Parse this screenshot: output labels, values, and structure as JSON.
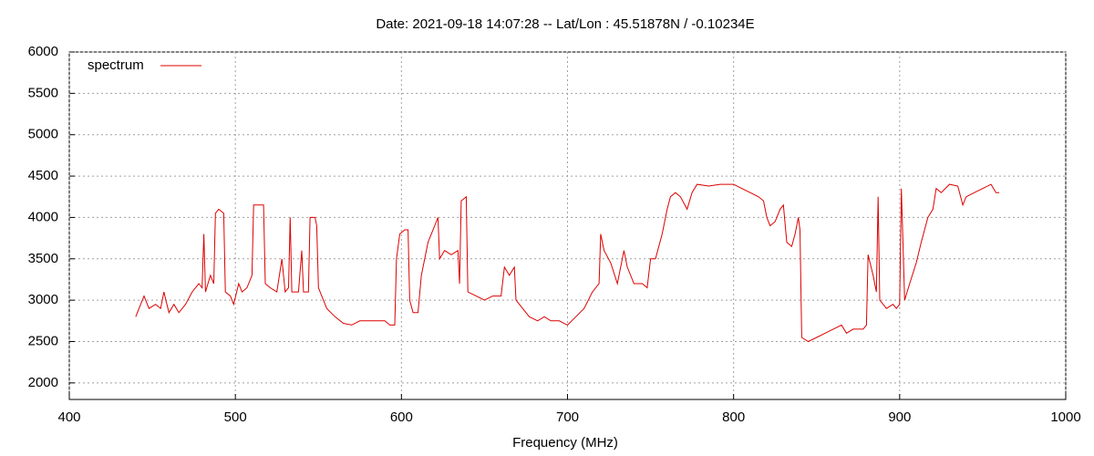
{
  "chart_data": {
    "type": "line",
    "title": "Date: 2021-09-18 14:07:28  --  Lat/Lon : 45.51878N / -0.10234E",
    "x_label": "Frequency (MHz)",
    "xlim": [
      400,
      1000
    ],
    "xticks": [
      400,
      500,
      600,
      700,
      800,
      900,
      1000
    ],
    "ylim": [
      1800,
      6000
    ],
    "yticks": [
      2000,
      2500,
      3000,
      3500,
      4000,
      4500,
      5000,
      5500,
      6000
    ],
    "grid": true,
    "legend": "top-left",
    "x": [
      440,
      443,
      445,
      448,
      452,
      455,
      457,
      460,
      463,
      466,
      470,
      474,
      478,
      480,
      481,
      482,
      485,
      487,
      488,
      490,
      493,
      494,
      497,
      499,
      502,
      504,
      507,
      510,
      511,
      515,
      517,
      518,
      521,
      525,
      528,
      530,
      532,
      533,
      534,
      538,
      540,
      541,
      544,
      545,
      548,
      549,
      550,
      555,
      560,
      565,
      570,
      575,
      580,
      585,
      590,
      593,
      596,
      597,
      599,
      602,
      604,
      605,
      607,
      610,
      612,
      616,
      620,
      622,
      623,
      626,
      630,
      634,
      635,
      636,
      639,
      640,
      645,
      650,
      655,
      660,
      662,
      665,
      668,
      669,
      673,
      677,
      682,
      686,
      690,
      695,
      700,
      705,
      710,
      715,
      719,
      720,
      722,
      726,
      730,
      734,
      736,
      740,
      745,
      748,
      750,
      753,
      757,
      760,
      762,
      765,
      768,
      772,
      775,
      778,
      785,
      792,
      800,
      805,
      810,
      815,
      818,
      820,
      822,
      825,
      828,
      830,
      832,
      835,
      837,
      839,
      840,
      841,
      845,
      850,
      855,
      860,
      865,
      868,
      872,
      878,
      880,
      881,
      884,
      886,
      887,
      888,
      892,
      896,
      898,
      900,
      901,
      903,
      906,
      910,
      913,
      917,
      920,
      922,
      925,
      930,
      935,
      938,
      940,
      945,
      950,
      955,
      958,
      960
    ],
    "series": [
      {
        "name": "spectrum",
        "color": "#dd0000",
        "values": [
          2800,
          2950,
          3050,
          2900,
          2950,
          2900,
          3100,
          2850,
          2950,
          2850,
          2950,
          3100,
          3200,
          3150,
          3800,
          3100,
          3300,
          3200,
          4050,
          4100,
          4050,
          3100,
          3050,
          2950,
          3200,
          3100,
          3150,
          3300,
          4150,
          4150,
          4150,
          3200,
          3150,
          3100,
          3500,
          3100,
          3150,
          4000,
          3100,
          3100,
          3600,
          3100,
          3100,
          4000,
          4000,
          3900,
          3150,
          2900,
          2800,
          2720,
          2700,
          2750,
          2750,
          2750,
          2750,
          2700,
          2700,
          3500,
          3800,
          3850,
          3850,
          3000,
          2850,
          2850,
          3300,
          3700,
          3900,
          4000,
          3500,
          3600,
          3550,
          3600,
          3200,
          4200,
          4250,
          3100,
          3050,
          3000,
          3050,
          3050,
          3400,
          3300,
          3400,
          3000,
          2900,
          2800,
          2750,
          2800,
          2750,
          2750,
          2700,
          2800,
          2900,
          3100,
          3200,
          3800,
          3600,
          3450,
          3200,
          3600,
          3400,
          3200,
          3200,
          3150,
          3500,
          3500,
          3800,
          4100,
          4250,
          4300,
          4250,
          4100,
          4300,
          4400,
          4380,
          4400,
          4400,
          4350,
          4300,
          4250,
          4200,
          4000,
          3900,
          3950,
          4100,
          4150,
          3700,
          3650,
          3800,
          4000,
          3850,
          2550,
          2500,
          2550,
          2600,
          2650,
          2700,
          2600,
          2650,
          2650,
          2700,
          3550,
          3300,
          3100,
          4250,
          3000,
          2900,
          2950,
          2900,
          2950,
          4350,
          3000,
          3200,
          3450,
          3700,
          4000,
          4100,
          4350,
          4300,
          4400,
          4380,
          4150,
          4250,
          4300,
          4350,
          4400,
          4300,
          4300
        ]
      }
    ]
  }
}
